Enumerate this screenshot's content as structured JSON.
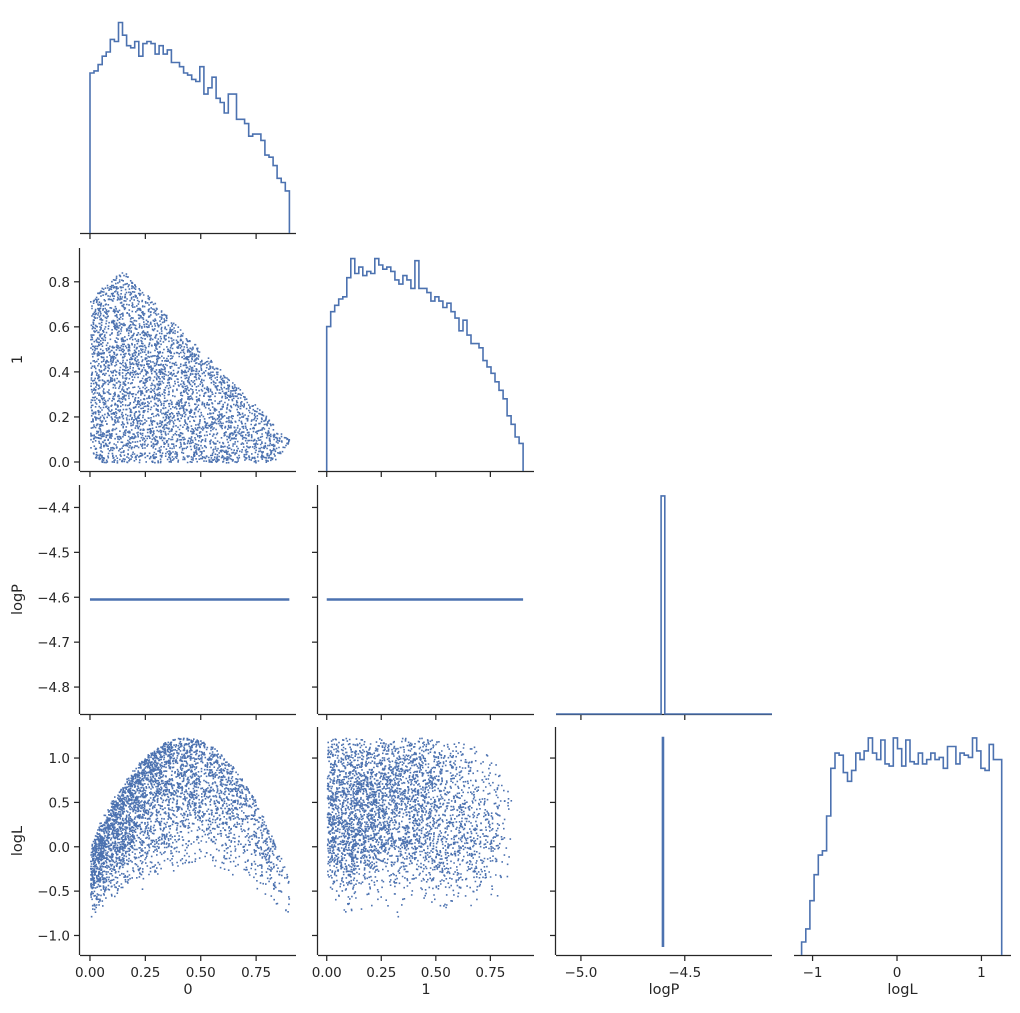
{
  "figure": {
    "type": "corner-plot",
    "accent_color": "#4c72b0",
    "axis_color": "#262626"
  },
  "chart_data": {
    "type": "scatter",
    "variables": [
      "0",
      "1",
      "logP",
      "logL"
    ],
    "axes": {
      "0": {
        "label": "0",
        "lim": [
          -0.045,
          0.93
        ],
        "ticks": [
          0.0,
          0.25,
          0.5,
          0.75
        ],
        "tick_labels": [
          "0.00",
          "0.25",
          "0.50",
          "0.75"
        ]
      },
      "1": {
        "label": "1",
        "lim": [
          -0.04,
          0.95
        ],
        "ticks": [
          0.0,
          0.2,
          0.4,
          0.6,
          0.8
        ],
        "tick_labels": [
          "0.0",
          "0.2",
          "0.4",
          "0.6",
          "0.8"
        ],
        "x_ticks": [
          0.0,
          0.25,
          0.5,
          0.75
        ],
        "x_tick_labels": [
          "0.00",
          "0.25",
          "0.50",
          "0.75"
        ]
      },
      "logP": {
        "label": "logP",
        "lim": [
          -4.86,
          -4.35
        ],
        "ticks": [
          -4.4,
          -4.5,
          -4.6,
          -4.7,
          -4.8
        ],
        "tick_labels": [
          "−4.4",
          "−4.5",
          "−4.6",
          "−4.7",
          "−4.8"
        ],
        "x_lim": [
          -5.12,
          -4.08
        ],
        "x_ticks": [
          -5.0,
          -4.5
        ],
        "x_tick_labels": [
          "−5.0",
          "−4.5"
        ]
      },
      "logL": {
        "label": "logL",
        "lim": [
          -1.22,
          1.35
        ],
        "ticks": [
          -1.0,
          -0.5,
          0.0,
          0.5,
          1.0
        ],
        "tick_labels": [
          "−1.0",
          "−0.5",
          "0.0",
          "0.5",
          "1.0"
        ],
        "x_ticks": [
          -1,
          0,
          1
        ],
        "x_tick_labels": [
          "−1",
          "0",
          "1"
        ]
      }
    },
    "diag_hist": {
      "0": {
        "range": [
          0.0,
          0.9
        ],
        "ylim": [
          0,
          1.05
        ],
        "heights": [
          0.76,
          0.77,
          0.8,
          0.84,
          0.86,
          0.92,
          0.91,
          1.0,
          0.94,
          0.89,
          0.88,
          0.91,
          0.84,
          0.9,
          0.91,
          0.9,
          0.85,
          0.89,
          0.85,
          0.87,
          0.81,
          0.81,
          0.79,
          0.76,
          0.75,
          0.73,
          0.72,
          0.79,
          0.66,
          0.69,
          0.74,
          0.64,
          0.62,
          0.57,
          0.66,
          0.66,
          0.54,
          0.54,
          0.52,
          0.46,
          0.47,
          0.47,
          0.44,
          0.37,
          0.36,
          0.32,
          0.26,
          0.24,
          0.2
        ]
      },
      "1": {
        "range": [
          0.0,
          0.9
        ],
        "ylim": [
          0,
          1.05
        ],
        "heights": [
          0.68,
          0.75,
          0.78,
          0.81,
          0.82,
          0.91,
          1.0,
          0.93,
          0.96,
          0.92,
          0.94,
          0.93,
          1.0,
          0.97,
          0.95,
          0.96,
          0.94,
          0.9,
          0.88,
          0.92,
          0.9,
          0.86,
          0.99,
          0.86,
          0.86,
          0.84,
          0.8,
          0.82,
          0.8,
          0.77,
          0.79,
          0.75,
          0.72,
          0.66,
          0.71,
          0.64,
          0.6,
          0.6,
          0.58,
          0.52,
          0.49,
          0.46,
          0.42,
          0.38,
          0.34,
          0.26,
          0.22,
          0.16,
          0.13
        ]
      },
      "logP": {
        "spike": -4.605,
        "width": 0.018,
        "height": 1.0,
        "ylim": [
          0,
          1.05
        ]
      },
      "logL": {
        "range": [
          -1.13,
          1.24
        ],
        "ylim": [
          0,
          1.05
        ],
        "heights": [
          0.06,
          0.12,
          0.25,
          0.37,
          0.46,
          0.48,
          0.64,
          0.86,
          0.93,
          0.92,
          0.84,
          0.8,
          0.85,
          0.93,
          0.9,
          0.94,
          1.0,
          0.93,
          0.9,
          0.99,
          0.88,
          0.87,
          1.0,
          0.95,
          0.87,
          0.99,
          0.89,
          0.88,
          0.93,
          0.88,
          0.9,
          0.93,
          0.9,
          0.91,
          0.86,
          0.96,
          0.96,
          0.88,
          0.93,
          0.92,
          0.91,
          1.0,
          0.94,
          0.86,
          0.85,
          0.97,
          0.9,
          0.9
        ]
      }
    },
    "scatter_points": {
      "count": 5200,
      "logP_value": -4.605,
      "note_ranges": {
        "0": [
          0.0,
          0.9
        ],
        "1": [
          0.0,
          0.9
        ],
        "logL": [
          -1.13,
          1.24
        ]
      }
    },
    "grid": false,
    "legend": "none",
    "corner": true
  }
}
